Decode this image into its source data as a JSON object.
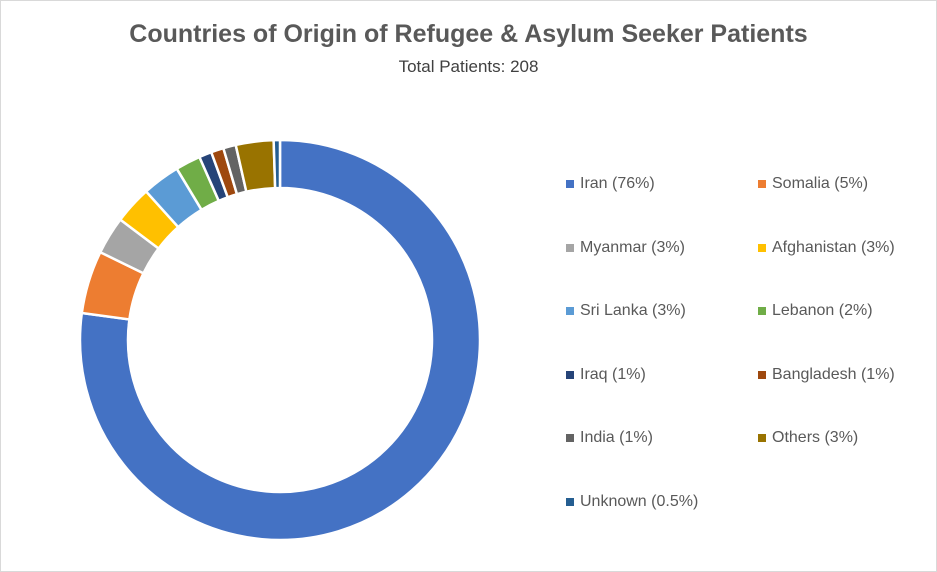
{
  "chart_data": {
    "type": "pie",
    "title": "Countries of Origin of Refugee & Asylum Seeker Patients",
    "subtitle": "Total Patients: 208",
    "legend_position": "right",
    "slices": [
      {
        "label": "Iran (76%)",
        "value": 76,
        "color": "#4472C4"
      },
      {
        "label": "Somalia (5%)",
        "value": 5,
        "color": "#ED7D31"
      },
      {
        "label": "Myanmar (3%)",
        "value": 3,
        "color": "#A5A5A5"
      },
      {
        "label": "Afghanistan (3%)",
        "value": 3,
        "color": "#FFC000"
      },
      {
        "label": "Sri Lanka (3%)",
        "value": 3,
        "color": "#5B9BD5"
      },
      {
        "label": "Lebanon (2%)",
        "value": 2,
        "color": "#70AD47"
      },
      {
        "label": "Iraq (1%)",
        "value": 1,
        "color": "#264478"
      },
      {
        "label": "Bangladesh (1%)",
        "value": 1,
        "color": "#9E480E"
      },
      {
        "label": "India (1%)",
        "value": 1,
        "color": "#636363"
      },
      {
        "label": "Others (3%)",
        "value": 3,
        "color": "#997300"
      },
      {
        "label": "Unknown (0.5%)",
        "value": 0.5,
        "color": "#255E91"
      }
    ]
  }
}
